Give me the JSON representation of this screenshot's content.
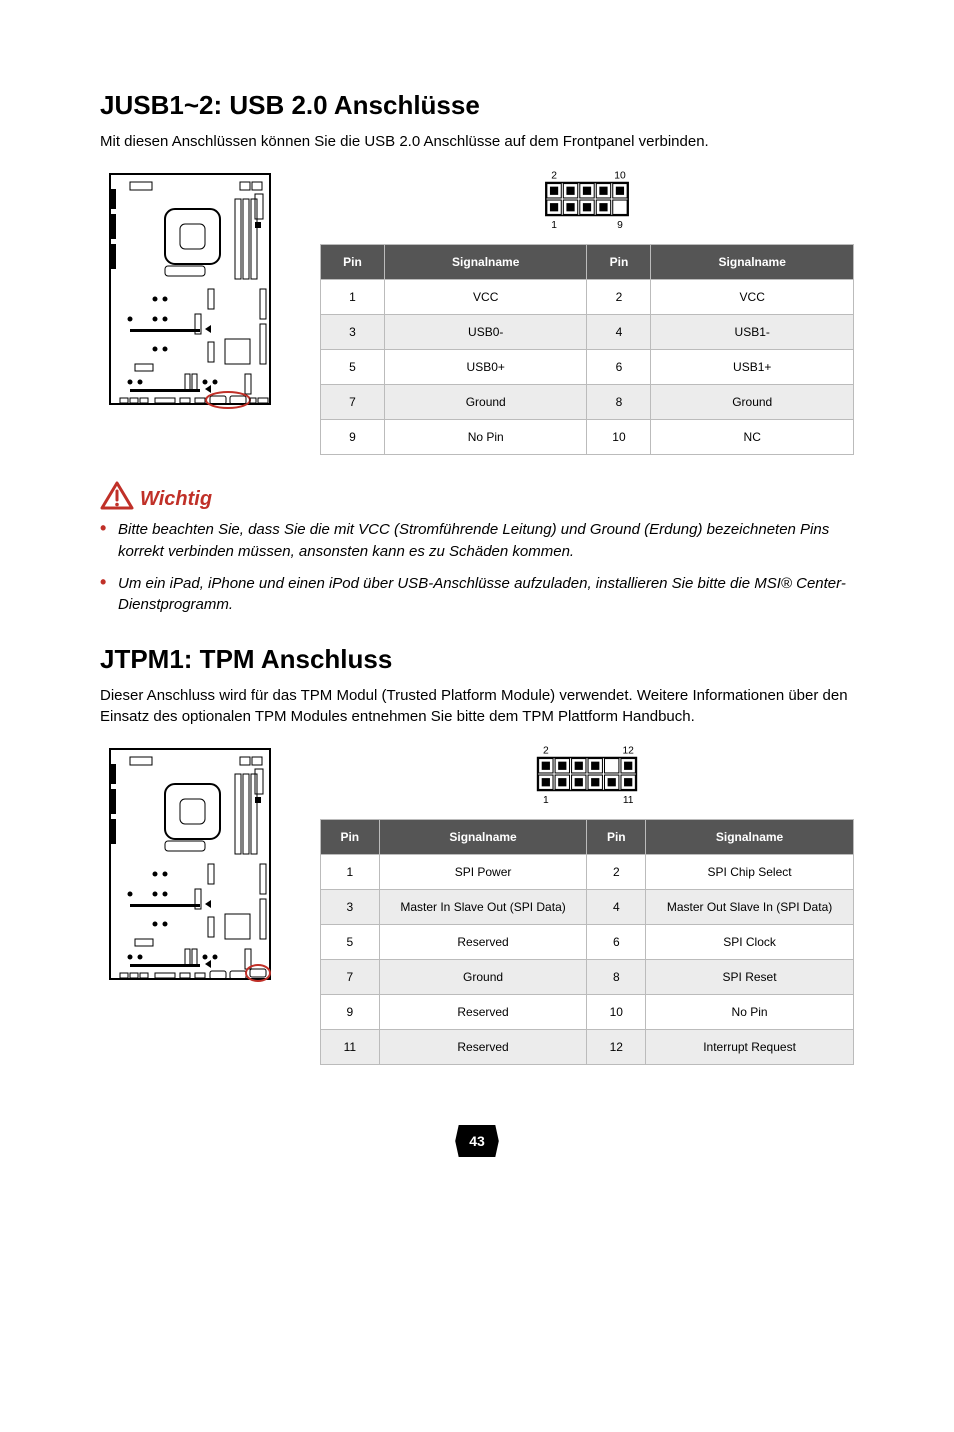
{
  "section1": {
    "title": "JUSB1~2: USB 2.0 Anschlüsse",
    "intro": "Mit diesen Anschlüssen können Sie die USB 2.0 Anschlüsse auf dem Frontpanel verbinden.",
    "pin_diagram": {
      "cols": 5,
      "rows": 2,
      "top_left_label": "2",
      "top_right_label": "10",
      "bottom_left_label": "1",
      "bottom_right_label": "9",
      "missing": [
        [
          1,
          4
        ]
      ]
    },
    "headers": [
      "Pin",
      "Signalname",
      "Pin",
      "Signalname"
    ],
    "rows": [
      [
        "1",
        "VCC",
        "2",
        "VCC"
      ],
      [
        "3",
        "USB0-",
        "4",
        "USB1-"
      ],
      [
        "5",
        "USB0+",
        "6",
        "USB1+"
      ],
      [
        "7",
        "Ground",
        "8",
        "Ground"
      ],
      [
        "9",
        "No Pin",
        "10",
        "NC"
      ]
    ],
    "alt_rows": [
      1,
      3
    ],
    "col_widths": [
      "12%",
      "38%",
      "12%",
      "38%"
    ]
  },
  "wichtig": {
    "label": "Wichtig",
    "icon_color": "#c03028",
    "items": [
      "Bitte beachten Sie, dass Sie die mit VCC (Stromführende Leitung) und Ground (Erdung) bezeichneten Pins korrekt verbinden müssen, ansonsten kann es zu Schäden kommen.",
      "Um ein iPad, iPhone und einen iPod über USB-Anschlüsse aufzuladen, installieren Sie bitte die MSI® Center-Dienstprogramm."
    ]
  },
  "section2": {
    "title": "JTPM1: TPM Anschluss",
    "intro": "Dieser Anschluss wird für das TPM Modul (Trusted Platform Module) verwendet. Weitere Informationen über den Einsatz des optionalen TPM Modules entnehmen Sie bitte dem TPM Plattform Handbuch.",
    "pin_diagram": {
      "cols": 6,
      "rows": 2,
      "top_left_label": "2",
      "top_right_label": "12",
      "bottom_left_label": "1",
      "bottom_right_label": "11",
      "missing": [
        [
          0,
          4
        ]
      ]
    },
    "headers": [
      "Pin",
      "Signalname",
      "Pin",
      "Signalname"
    ],
    "rows": [
      [
        "1",
        "SPI Power",
        "2",
        "SPI Chip Select"
      ],
      [
        "3",
        "Master In Slave Out (SPI Data)",
        "4",
        "Master Out Slave In (SPI Data)"
      ],
      [
        "5",
        "Reserved",
        "6",
        "SPI Clock"
      ],
      [
        "7",
        "Ground",
        "8",
        "SPI Reset"
      ],
      [
        "9",
        "Reserved",
        "10",
        "No Pin"
      ],
      [
        "11",
        "Reserved",
        "12",
        "Interrupt Request"
      ]
    ],
    "alt_rows": [
      1,
      3,
      5
    ],
    "col_widths": [
      "11%",
      "39%",
      "11%",
      "39%"
    ]
  },
  "mobo": {
    "outline": "#000000",
    "highlight": "#c03028"
  },
  "page_number": "43"
}
